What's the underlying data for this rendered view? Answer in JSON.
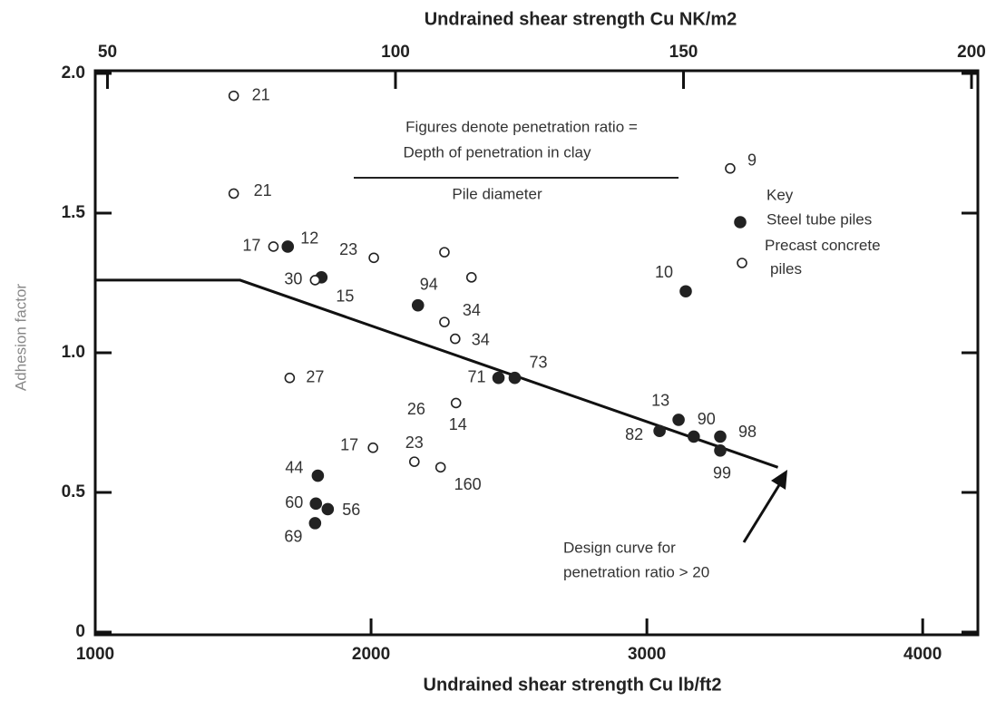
{
  "chart_data": {
    "type": "scatter",
    "title_top": "Undrained shear strength Cu NK/m2",
    "xlabel": "Undrained shear strength Cu lb/ft2",
    "ylabel": "Adhesion factor",
    "xlim": [
      1000,
      4200
    ],
    "xticks": [
      1000,
      2000,
      3000,
      4000
    ],
    "x2lim": [
      47.88,
      201.1
    ],
    "x2ticks": [
      50,
      100,
      150,
      200
    ],
    "ylim": [
      0,
      2
    ],
    "yticks": [
      0,
      0.5,
      {
        "value": 1,
        "label": "1.0"
      },
      1.5,
      {
        "value": 2,
        "label": "2.0"
      }
    ],
    "note": [
      "Figures denote penetration ratio =",
      "Depth of penetration in clay",
      "Pile diameter"
    ],
    "legend_title": "Key",
    "series": [
      {
        "name": "Steel tube piles",
        "marker": "filled",
        "color": "#222",
        "x": [
          1698,
          1820,
          2170,
          2462,
          2521,
          3141,
          3115,
          3046,
          3170,
          3266,
          3266,
          1807,
          1800,
          1843,
          1797
        ],
        "y": [
          1.38,
          1.27,
          1.17,
          0.91,
          0.91,
          1.22,
          0.76,
          0.72,
          0.7,
          0.7,
          0.65,
          0.56,
          0.46,
          0.44,
          0.39
        ],
        "labels": [
          "12",
          "15",
          "94",
          "71",
          "73",
          "10",
          "13",
          "82",
          "90",
          "98",
          "99",
          "44",
          "60",
          "56",
          "69"
        ]
      },
      {
        "name": "Precast concrete piles",
        "marker": "open",
        "color": "#222",
        "x": [
          1502,
          1502,
          1646,
          1797,
          2010,
          2266,
          2364,
          2266,
          2305,
          1705,
          2308,
          2007,
          2157,
          2252,
          3302
        ],
        "y": [
          1.92,
          1.57,
          1.38,
          1.26,
          1.34,
          1.36,
          1.27,
          1.11,
          1.05,
          0.91,
          0.82,
          0.66,
          0.61,
          0.59,
          1.66
        ],
        "labels": [
          "21",
          "21",
          "17",
          "30",
          "23",
          null,
          null,
          "34",
          "34",
          "27",
          "14",
          "17",
          "23",
          "160",
          "9"
        ]
      }
    ],
    "annotations": [
      {
        "text": "26",
        "x": 2164,
        "y": 0.795
      }
    ],
    "design_curve": {
      "label": [
        "Design curve for",
        "penetration ratio > 20"
      ],
      "x": [
        1000,
        1525,
        3475
      ],
      "y": [
        1.26,
        1.26,
        0.59
      ]
    }
  }
}
